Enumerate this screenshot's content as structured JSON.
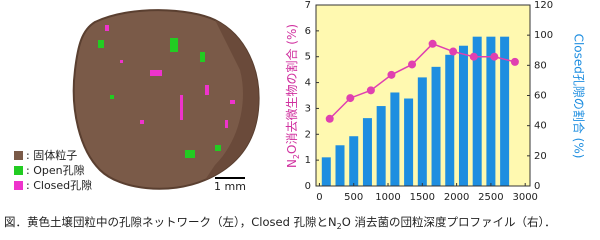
{
  "left_panel": {
    "legend": [
      ": 固体粒子",
      ": Open孔隙",
      ": Closed孔隙"
    ],
    "scale_bar": "1 mm"
  },
  "chart_data": {
    "type": "combo",
    "y_label": [
      "N",
      "2",
      "O消去微生物の割合 (%)"
    ],
    "y2_label": "Closed孔隙の割合 (%)",
    "background": "#fff9b0",
    "xlim": [
      -50,
      3070
    ],
    "xticks": [
      0,
      500,
      1000,
      1500,
      2000,
      2500,
      3000
    ],
    "ylim": [
      0,
      7
    ],
    "yticks": [
      0,
      1,
      2,
      3,
      4,
      5,
      6,
      7
    ],
    "y2lim": [
      0,
      120
    ],
    "y2ticks": [
      0,
      20,
      40,
      60,
      80,
      100,
      120
    ],
    "series": [
      {
        "type": "bar",
        "axis": "y2",
        "color": "#1e8ee0",
        "x": [
          100,
          300,
          500,
          700,
          900,
          1100,
          1300,
          1500,
          1700,
          1900,
          2100,
          2300,
          2500,
          2700
        ],
        "values": [
          19,
          27,
          33,
          45,
          53,
          62,
          58,
          72,
          79,
          87,
          93,
          99,
          99,
          99
        ]
      },
      {
        "type": "line",
        "axis": "y",
        "color": "#e040b0",
        "x": [
          150,
          450,
          750,
          1050,
          1350,
          1650,
          1950,
          2250,
          2550,
          2850
        ],
        "values": [
          2.6,
          3.4,
          3.7,
          4.3,
          4.7,
          5.5,
          5.2,
          5.0,
          5.0,
          4.8
        ]
      }
    ]
  },
  "caption": [
    "図．黄色土壌団粒中の孔隙ネットワーク（左），Closed 孔隙とN",
    "2",
    "O 消去菌の団粒深度プロファイル（右）．"
  ]
}
